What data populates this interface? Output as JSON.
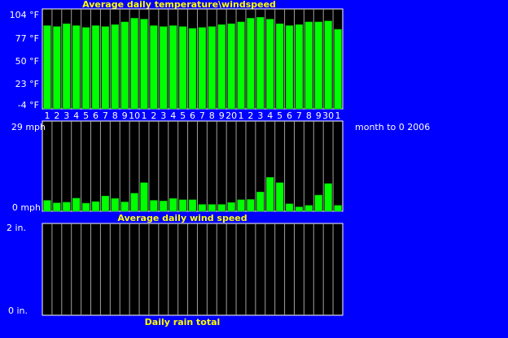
{
  "colors": {
    "background": "#0000ff",
    "panel": "#000000",
    "bar": "#00ff00",
    "bar_edge": "#00aa00",
    "title": "#ffff00",
    "text": "#ffffff",
    "grid": "#a0a0a0"
  },
  "side_label": "month to 0 2006",
  "chart_data": [
    {
      "type": "bar",
      "title": "Average daily temperature\\windspeed",
      "categories": [
        "1",
        "2",
        "3",
        "4",
        "5",
        "6",
        "7",
        "8",
        "9",
        "10",
        "1",
        "2",
        "3",
        "4",
        "5",
        "6",
        "7",
        "8",
        "9",
        "20",
        "1",
        "2",
        "3",
        "4",
        "5",
        "6",
        "7",
        "8",
        "9",
        "30",
        "1"
      ],
      "yticks": [
        "104 °F",
        "77 °F",
        "50 °F",
        "23 °F",
        "-4 °F"
      ],
      "ylim": [
        -4,
        104
      ],
      "values": [
        86,
        85,
        88,
        86,
        84,
        86,
        85,
        87,
        90,
        94,
        93,
        86,
        85,
        86,
        85,
        83,
        84,
        85,
        87,
        88,
        90,
        94,
        95,
        93,
        88,
        86,
        87,
        90,
        90,
        91,
        82
      ],
      "grid": true
    },
    {
      "type": "bar",
      "title": "Average daily wind speed",
      "yticks": [
        "29 mph",
        "0 mph"
      ],
      "ylim": [
        0,
        29
      ],
      "values": [
        3.5,
        2.7,
        2.9,
        4.2,
        2.6,
        3.1,
        4.9,
        4.1,
        3.0,
        5.8,
        9.2,
        3.5,
        3.3,
        4.1,
        3.7,
        3.7,
        2.2,
        2.2,
        2.2,
        2.8,
        3.7,
        3.8,
        6.2,
        10.9,
        9.2,
        2.4,
        1.4,
        1.9,
        5.2,
        8.9,
        1.9
      ],
      "grid": true
    },
    {
      "type": "bar",
      "title": "Daily rain total",
      "yticks": [
        "2 in.",
        "0 in."
      ],
      "ylim": [
        0,
        2
      ],
      "values": [
        0,
        0,
        0,
        0,
        0,
        0,
        0,
        0,
        0,
        0,
        0,
        0,
        0,
        0,
        0,
        0,
        0,
        0,
        0,
        0,
        0,
        0,
        0,
        0,
        0,
        0,
        0,
        0,
        0,
        0,
        0
      ],
      "grid": true
    }
  ]
}
